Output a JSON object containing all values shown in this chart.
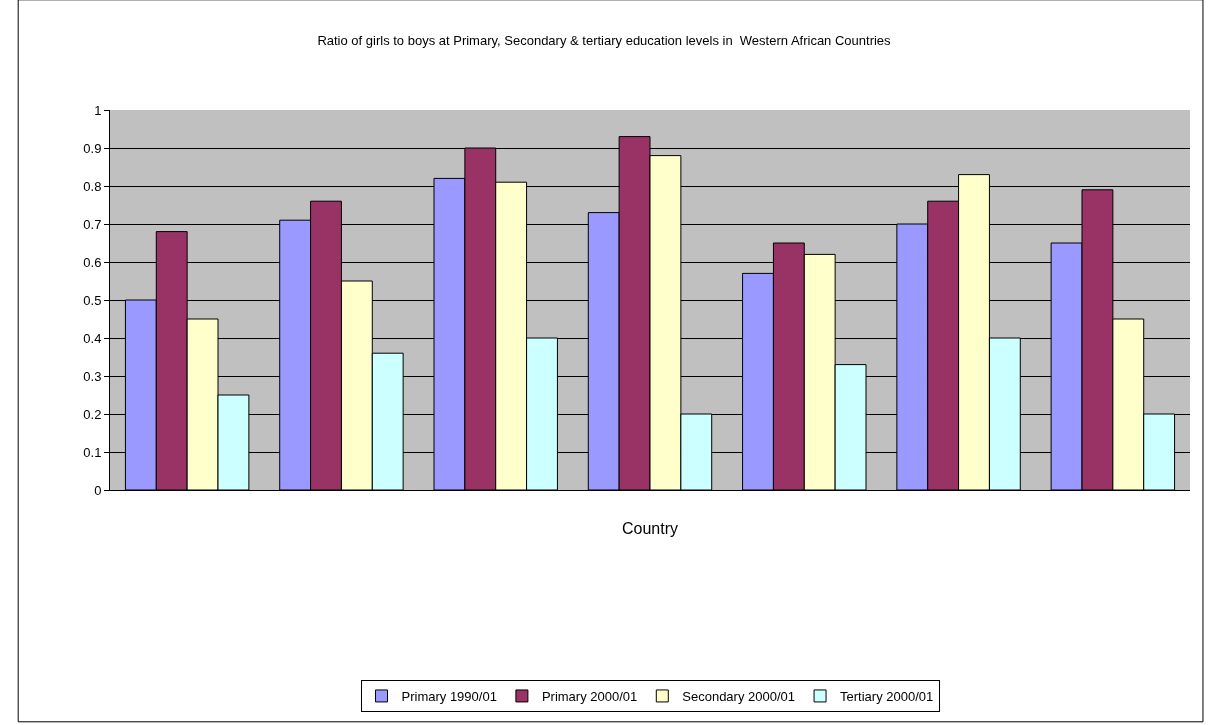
{
  "chart_data": {
    "type": "bar",
    "title": "Ratio of girls to boys at Primary, Secondary & tertiary education levels in  Western African Countries",
    "xlabel": "Country",
    "categories": [
      null,
      null,
      null,
      null,
      null,
      null,
      null
    ],
    "series": [
      {
        "name": "Primary 1990/01",
        "color": "#9999ff",
        "values": [
          0.5,
          0.71,
          0.82,
          0.73,
          0.57,
          0.7,
          0.65
        ]
      },
      {
        "name": "Primary 2000/01",
        "color": "#993366",
        "values": [
          0.68,
          0.76,
          0.9,
          0.93,
          0.65,
          0.76,
          0.79
        ]
      },
      {
        "name": "Secondary 2000/01",
        "color": "#ffffcc",
        "values": [
          0.45,
          0.55,
          0.81,
          0.88,
          0.62,
          0.83,
          0.45
        ]
      },
      {
        "name": "Tertiary 2000/01",
        "color": "#ccffff",
        "values": [
          0.25,
          0.36,
          0.4,
          0.2,
          0.33,
          0.4,
          0.2
        ]
      }
    ],
    "ylim": [
      0,
      1
    ],
    "yticks": [
      0,
      0.1,
      0.2,
      0.3,
      0.4,
      0.5,
      0.6,
      0.7,
      0.8,
      0.9,
      1
    ],
    "grid": "y",
    "legend": "bottom"
  }
}
